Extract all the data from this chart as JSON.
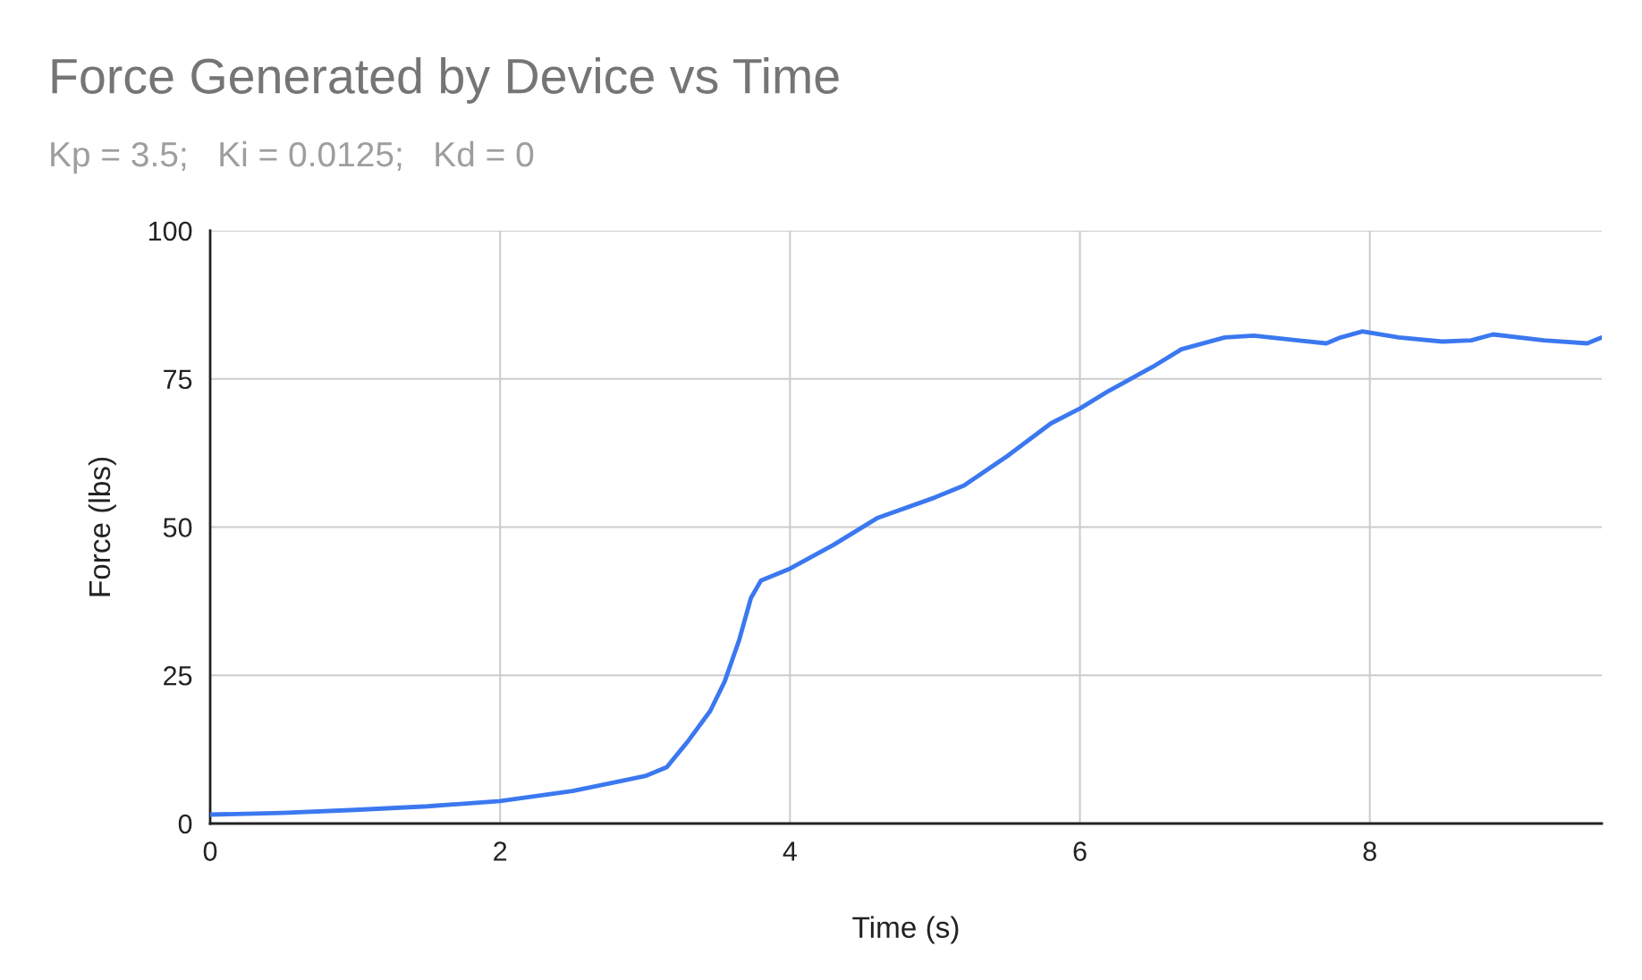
{
  "chart_data": {
    "type": "line",
    "title": "Force Generated by Device vs Time",
    "subtitle": "Kp = 3.5;   Ki = 0.0125;   Kd = 0",
    "xlabel": "Time (s)",
    "ylabel": "Force (lbs)",
    "x": [
      0,
      0.5,
      1,
      1.5,
      2,
      2.5,
      2.8,
      3,
      3.15,
      3.3,
      3.45,
      3.55,
      3.65,
      3.73,
      3.8,
      4.0,
      4.3,
      4.6,
      5.0,
      5.2,
      5.5,
      5.8,
      6.0,
      6.2,
      6.5,
      6.7,
      7.0,
      7.2,
      7.5,
      7.7,
      7.8,
      7.95,
      8.2,
      8.5,
      8.7,
      8.85,
      9.2,
      9.5,
      9.6
    ],
    "series": [
      {
        "color": "#3b78f0",
        "values": [
          1.5,
          1.8,
          2.3,
          2.9,
          3.8,
          5.5,
          7,
          8,
          9.5,
          14,
          19,
          24,
          31,
          38,
          41,
          43,
          47,
          51.5,
          55,
          57,
          62,
          67.5,
          70,
          73,
          77,
          80,
          82,
          82.3,
          81.5,
          81,
          82,
          83,
          82,
          81.3,
          81.5,
          82.5,
          81.5,
          81,
          82
        ]
      }
    ],
    "xlim": [
      0,
      9.6
    ],
    "ylim": [
      0,
      100
    ],
    "xticks": [
      0,
      2,
      4,
      6,
      8
    ],
    "yticks": [
      0,
      25,
      50,
      75,
      100
    ],
    "grid": true,
    "marker": "none",
    "line_style": "solid",
    "legend": false
  }
}
